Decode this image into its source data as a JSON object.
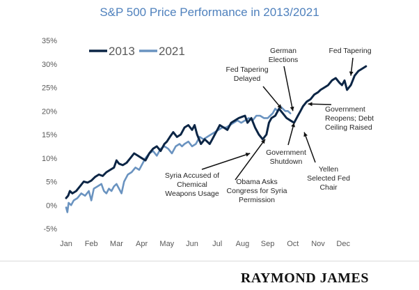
{
  "chart_data": {
    "type": "line",
    "title": "S&P 500 Price Performance in 2013/2021",
    "xlabel": "",
    "ylabel": "",
    "ylim": [
      -5,
      35
    ],
    "yticks": [
      "-5%",
      "0%",
      "5%",
      "10%",
      "15%",
      "20%",
      "25%",
      "30%",
      "35%"
    ],
    "xticks": [
      "Jan",
      "Feb",
      "Mar",
      "Apr",
      "May",
      "Jun",
      "Jul",
      "Aug",
      "Sep",
      "Oct",
      "Nov",
      "Dec"
    ],
    "grid": false,
    "legend": "top-left",
    "series": [
      {
        "name": "2013",
        "color": "#0b2545",
        "x": [
          0.0,
          0.08,
          0.15,
          0.25,
          0.4,
          0.55,
          0.7,
          0.85,
          1.0,
          1.15,
          1.3,
          1.45,
          1.6,
          1.75,
          1.9,
          2.0,
          2.1,
          2.25,
          2.4,
          2.55,
          2.7,
          2.85,
          3.0,
          3.15,
          3.3,
          3.45,
          3.6,
          3.75,
          3.9,
          4.0,
          4.12,
          4.25,
          4.4,
          4.55,
          4.7,
          4.85,
          5.0,
          5.1,
          5.2,
          5.35,
          5.5,
          5.6,
          5.7,
          5.8,
          5.9,
          6.0,
          6.1,
          6.25,
          6.4,
          6.55,
          6.7,
          6.85,
          7.0,
          7.1,
          7.2,
          7.35,
          7.5,
          7.65,
          7.8,
          7.95,
          8.05,
          8.15,
          8.3,
          8.45,
          8.6,
          8.75,
          8.9,
          9.05,
          9.2,
          9.3,
          9.4,
          9.55,
          9.7,
          9.85,
          10.0,
          10.1,
          10.25,
          10.4,
          10.55,
          10.7,
          10.85,
          10.95,
          11.05,
          11.15,
          11.3,
          11.45,
          11.6,
          11.75,
          11.9
        ],
        "values": [
          1.5,
          2.0,
          3.0,
          2.5,
          3.0,
          4.0,
          5.0,
          4.8,
          5.2,
          6.0,
          6.5,
          6.2,
          7.0,
          7.5,
          8.0,
          9.5,
          8.8,
          8.5,
          9.0,
          10.0,
          11.0,
          10.5,
          10.0,
          9.5,
          11.0,
          12.0,
          12.5,
          11.5,
          13.0,
          13.5,
          14.5,
          15.5,
          14.5,
          15.0,
          16.5,
          17.0,
          16.0,
          17.0,
          15.0,
          13.0,
          14.0,
          13.5,
          13.0,
          14.0,
          15.0,
          16.0,
          17.0,
          16.5,
          16.0,
          17.5,
          18.0,
          18.5,
          18.8,
          19.0,
          17.5,
          18.5,
          16.5,
          15.0,
          14.0,
          15.0,
          17.5,
          18.5,
          19.0,
          20.5,
          19.5,
          18.5,
          18.0,
          17.5,
          19.0,
          20.0,
          21.0,
          22.0,
          22.5,
          23.5,
          24.0,
          24.5,
          25.0,
          25.5,
          26.5,
          27.0,
          26.0,
          25.5,
          26.5,
          24.5,
          25.5,
          27.5,
          28.5,
          29.0,
          29.5
        ]
      },
      {
        "name": "2021",
        "color": "#6a93c0",
        "x": [
          0.0,
          0.05,
          0.1,
          0.2,
          0.3,
          0.45,
          0.6,
          0.75,
          0.9,
          1.0,
          1.1,
          1.25,
          1.4,
          1.5,
          1.6,
          1.7,
          1.8,
          1.9,
          2.0,
          2.1,
          2.2,
          2.3,
          2.45,
          2.6,
          2.75,
          2.9,
          3.0,
          3.15,
          3.3,
          3.45,
          3.6,
          3.75,
          3.9,
          4.05,
          4.2,
          4.35,
          4.5,
          4.6,
          4.7,
          4.85,
          5.0,
          5.15,
          5.3,
          5.45,
          5.6,
          5.75,
          5.9,
          6.05,
          6.2,
          6.35,
          6.5,
          6.65,
          6.8,
          6.95,
          7.1,
          7.25,
          7.4,
          7.55,
          7.7,
          7.85,
          8.0,
          8.1,
          8.2,
          8.3,
          8.4,
          8.5,
          8.6,
          8.7,
          8.8,
          8.9
        ],
        "values": [
          -0.5,
          -1.5,
          0.5,
          0.0,
          1.0,
          1.5,
          2.5,
          2.0,
          3.0,
          1.0,
          3.5,
          4.0,
          4.5,
          3.0,
          2.5,
          3.5,
          3.0,
          4.0,
          4.5,
          3.5,
          2.5,
          5.0,
          6.5,
          7.0,
          8.0,
          7.5,
          8.5,
          10.0,
          11.0,
          11.5,
          10.5,
          12.0,
          12.5,
          12.0,
          11.0,
          12.5,
          13.0,
          12.5,
          13.0,
          13.5,
          12.5,
          13.0,
          14.5,
          14.0,
          14.5,
          15.0,
          15.5,
          16.0,
          16.5,
          16.5,
          17.0,
          17.5,
          18.0,
          17.5,
          18.0,
          18.5,
          18.0,
          19.0,
          19.0,
          18.5,
          18.5,
          19.0,
          19.5,
          20.5,
          20.0,
          21.0,
          20.5,
          20.0,
          20.0,
          19.5
        ]
      }
    ],
    "annotations": [
      {
        "lines": [
          "Syria Accused of",
          "Chemical",
          "Weapons Usage"
        ],
        "x": 7.3,
        "y": 11.0
      },
      {
        "lines": [
          "Obama Asks",
          "Congress for Syria",
          "Permission"
        ],
        "x": 7.9,
        "y": 14.0
      },
      {
        "lines": [
          "Fed Tapering",
          "Delayed"
        ],
        "x": 8.55,
        "y": 20.5
      },
      {
        "lines": [
          "German",
          "Elections"
        ],
        "x": 9.0,
        "y": 20.0
      },
      {
        "lines": [
          "Government",
          "Shutdown"
        ],
        "x": 9.05,
        "y": 17.5
      },
      {
        "lines": [
          "Yellen",
          "Selected Fed",
          "Chair"
        ],
        "x": 9.45,
        "y": 15.5
      },
      {
        "lines": [
          "Government",
          "Reopens; Debt",
          "Ceiling Raised"
        ],
        "x": 9.6,
        "y": 21.5
      },
      {
        "lines": [
          "Fed Tapering"
        ],
        "x": 11.3,
        "y": 27.5
      }
    ]
  },
  "footer": {
    "brand": "RAYMOND JAMES"
  }
}
